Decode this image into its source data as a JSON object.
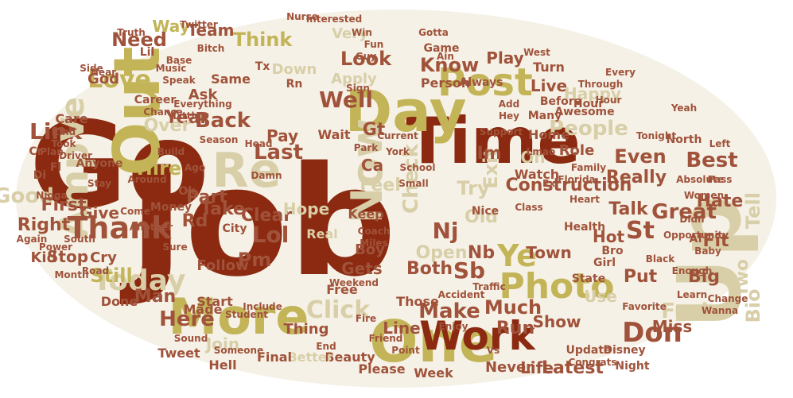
{
  "palette": {
    "rust": "#8b2a10",
    "olive": "#c2b457",
    "tan": "#d8cfa8",
    "brown": "#a0523a",
    "beige": "#ece6d2",
    "ellipse_fill": "#f5f1e6"
  },
  "words": [
    {
      "text": "Job",
      "color": "rust"
    },
    {
      "text": "Go",
      "color": "rust"
    },
    {
      "text": "Time",
      "color": "rust"
    },
    {
      "text": "Day",
      "color": "olive"
    },
    {
      "text": "Out",
      "color": "olive"
    },
    {
      "text": "One",
      "color": "olive"
    },
    {
      "text": "More",
      "color": "olive"
    },
    {
      "text": "Up",
      "color": "tan"
    },
    {
      "text": "Work",
      "color": "rust"
    },
    {
      "text": "Re",
      "color": "tan"
    },
    {
      "text": "Now",
      "color": "tan"
    },
    {
      "text": "Post",
      "color": "olive"
    },
    {
      "text": "Amp",
      "color": "tan"
    },
    {
      "text": "Thank",
      "color": "brown"
    },
    {
      "text": "Photo",
      "color": "olive"
    },
    {
      "text": "Construction",
      "color": "brown"
    },
    {
      "text": "Link",
      "color": "brown"
    },
    {
      "text": "Love",
      "color": "olive"
    },
    {
      "text": "Need",
      "color": "brown"
    },
    {
      "text": "Think",
      "color": "olive"
    },
    {
      "text": "Look",
      "color": "brown"
    },
    {
      "text": "Know",
      "color": "brown"
    },
    {
      "text": "Ve",
      "color": "tan"
    },
    {
      "text": "Year",
      "color": "brown"
    },
    {
      "text": "Back",
      "color": "brown"
    },
    {
      "text": "Well",
      "color": "brown"
    },
    {
      "text": "Check",
      "color": "tan"
    },
    {
      "text": "Great",
      "color": "brown"
    },
    {
      "text": "St",
      "color": "brown"
    },
    {
      "text": "Today",
      "color": "tan"
    },
    {
      "text": "Here",
      "color": "brown"
    },
    {
      "text": "Make",
      "color": "brown"
    },
    {
      "text": "Don",
      "color": "brown"
    },
    {
      "text": "Fuck",
      "color": "tan"
    },
    {
      "text": "Click",
      "color": "tan"
    },
    {
      "text": "Good",
      "color": "tan"
    },
    {
      "text": "Right",
      "color": "brown"
    },
    {
      "text": "Lol",
      "color": "brown"
    },
    {
      "text": "Clear",
      "color": "brown"
    },
    {
      "text": "Pm",
      "color": "brown"
    },
    {
      "text": "Much",
      "color": "brown"
    },
    {
      "text": "People",
      "color": "tan"
    },
    {
      "text": "Even",
      "color": "brown"
    },
    {
      "text": "Best",
      "color": "brown"
    },
    {
      "text": "Really",
      "color": "brown"
    },
    {
      "text": "Still",
      "color": "olive"
    },
    {
      "text": "Man",
      "color": "brown"
    },
    {
      "text": "Hire",
      "color": "olive"
    },
    {
      "text": "Take",
      "color": "brown"
    },
    {
      "text": "Sb",
      "color": "brown"
    },
    {
      "text": "Nj",
      "color": "brown"
    },
    {
      "text": "Ye",
      "color": "olive"
    },
    {
      "text": "Open",
      "color": "tan"
    },
    {
      "text": "Feel",
      "color": "tan"
    },
    {
      "text": "Exit",
      "color": "tan"
    },
    {
      "text": "Live",
      "color": "brown"
    },
    {
      "text": "Team",
      "color": "brown"
    },
    {
      "text": "Way",
      "color": "olive"
    },
    {
      "text": "Talk",
      "color": "brown"
    },
    {
      "text": "Bio",
      "color": "tan"
    },
    {
      "text": "Join",
      "color": "tan"
    },
    {
      "text": "Show",
      "color": "brown"
    },
    {
      "text": "Run",
      "color": "brown"
    },
    {
      "text": "Miss",
      "color": "brown"
    },
    {
      "text": "Stop",
      "color": "brown"
    },
    {
      "text": "Put",
      "color": "brown"
    },
    {
      "text": "Big",
      "color": "brown"
    },
    {
      "text": "Two",
      "color": "tan"
    },
    {
      "text": "Fit",
      "color": "brown"
    },
    {
      "text": "Hate",
      "color": "brown"
    },
    {
      "text": "Tell",
      "color": "tan"
    },
    {
      "text": "Play",
      "color": "brown"
    },
    {
      "text": "Last",
      "color": "brown"
    },
    {
      "text": "Part",
      "color": "brown"
    },
    {
      "text": "Pay",
      "color": "brown"
    },
    {
      "text": "Hot",
      "color": "brown"
    },
    {
      "text": "Kid",
      "color": "brown"
    },
    {
      "text": "Cry",
      "color": "brown"
    },
    {
      "text": "Give",
      "color": "brown"
    },
    {
      "text": "First",
      "color": "brown"
    },
    {
      "text": "Both",
      "color": "brown"
    },
    {
      "text": "Line",
      "color": "brown"
    },
    {
      "text": "Gets",
      "color": "brown"
    },
    {
      "text": "Over",
      "color": "tan"
    },
    {
      "text": "Happy",
      "color": "tan"
    },
    {
      "text": "Hope",
      "color": "tan"
    },
    {
      "text": "Rd",
      "color": "brown"
    },
    {
      "text": "Old",
      "color": "tan"
    },
    {
      "text": "Try",
      "color": "tan"
    },
    {
      "text": "Im",
      "color": "brown"
    },
    {
      "text": "Ca",
      "color": "brown"
    },
    {
      "text": "Gt",
      "color": "brown"
    },
    {
      "text": "Nb",
      "color": "brown"
    },
    {
      "text": "Oh",
      "color": "tan"
    },
    {
      "text": "Role",
      "color": "brown"
    },
    {
      "text": "Watch",
      "color": "brown"
    },
    {
      "text": "Latest",
      "color": "brown"
    },
    {
      "text": "Never",
      "color": "brown"
    },
    {
      "text": "Life",
      "color": "brown"
    },
    {
      "text": "Please",
      "color": "brown"
    },
    {
      "text": "Week",
      "color": "brown"
    },
    {
      "text": "Beauty",
      "color": "brown"
    },
    {
      "text": "Better",
      "color": "tan"
    },
    {
      "text": "Final",
      "color": "brown"
    },
    {
      "text": "Hell",
      "color": "brown"
    },
    {
      "text": "Tweet",
      "color": "brown"
    },
    {
      "text": "Done",
      "color": "brown"
    },
    {
      "text": "Made",
      "color": "brown"
    },
    {
      "text": "Start",
      "color": "brown"
    },
    {
      "text": "Thing",
      "color": "brown"
    },
    {
      "text": "Follow",
      "color": "brown"
    },
    {
      "text": "Those",
      "color": "brown"
    },
    {
      "text": "Town",
      "color": "brown"
    },
    {
      "text": "Use",
      "color": "tan"
    },
    {
      "text": "Boy",
      "color": "brown"
    },
    {
      "text": "Night",
      "color": "brown"
    },
    {
      "text": "Real",
      "color": "tan"
    },
    {
      "text": "Free",
      "color": "brown"
    },
    {
      "text": "Home",
      "color": "brown"
    },
    {
      "text": "Keep",
      "color": "brown"
    },
    {
      "text": "Ask",
      "color": "brown"
    },
    {
      "text": "Same",
      "color": "brown"
    },
    {
      "text": "God",
      "color": "brown"
    },
    {
      "text": "Care",
      "color": "brown"
    },
    {
      "text": "Career",
      "color": "brown"
    },
    {
      "text": "Apply",
      "color": "tan"
    },
    {
      "text": "Down",
      "color": "tan"
    },
    {
      "text": "Very",
      "color": "tan"
    },
    {
      "text": "Wait",
      "color": "brown"
    },
    {
      "text": "Person",
      "color": "brown"
    },
    {
      "text": "Turn",
      "color": "brown"
    },
    {
      "text": "Always",
      "color": "brown"
    },
    {
      "text": "Awesome",
      "color": "brown"
    },
    {
      "text": "Anyone",
      "color": "brown"
    },
    {
      "text": "Nice",
      "color": "brown"
    },
    {
      "text": "Ok",
      "color": "brown"
    },
    {
      "text": "Money",
      "color": "brown"
    },
    {
      "text": "City",
      "color": "brown"
    },
    {
      "text": "Health",
      "color": "brown"
    },
    {
      "text": "State",
      "color": "brown"
    },
    {
      "text": "Update",
      "color": "brown"
    },
    {
      "text": "Disney",
      "color": "brown"
    },
    {
      "text": "Bro",
      "color": "brown"
    },
    {
      "text": "Girl",
      "color": "brown"
    },
    {
      "text": "Many",
      "color": "brown"
    },
    {
      "text": "Tx",
      "color": "brown"
    },
    {
      "text": "Lil",
      "color": "brown"
    },
    {
      "text": "Rn",
      "color": "brown"
    },
    {
      "text": "Fl",
      "color": "brown"
    },
    {
      "text": "Di",
      "color": "brown"
    },
    {
      "text": "Cr",
      "color": "brown"
    },
    {
      "text": "Truth",
      "color": "brown"
    },
    {
      "text": "Twitter",
      "color": "brown"
    },
    {
      "text": "Bitch",
      "color": "brown"
    },
    {
      "text": "Nurse",
      "color": "brown"
    },
    {
      "text": "Interested",
      "color": "brown"
    },
    {
      "text": "Game",
      "color": "brown"
    },
    {
      "text": "Fun",
      "color": "brown"
    },
    {
      "text": "Guy",
      "color": "brown"
    },
    {
      "text": "Gotta",
      "color": "brown"
    },
    {
      "text": "Win",
      "color": "brown"
    },
    {
      "text": "West",
      "color": "brown"
    },
    {
      "text": "Music",
      "color": "brown"
    },
    {
      "text": "Speak",
      "color": "brown"
    },
    {
      "text": "Base",
      "color": "brown"
    },
    {
      "text": "Side",
      "color": "brown"
    },
    {
      "text": "Near",
      "color": "brown"
    },
    {
      "text": "Lmao",
      "color": "brown"
    },
    {
      "text": "York",
      "color": "brown"
    },
    {
      "text": "Before",
      "color": "brown"
    },
    {
      "text": "Hour",
      "color": "brown"
    },
    {
      "text": "North",
      "color": "brown"
    },
    {
      "text": "Left",
      "color": "brown"
    },
    {
      "text": "Pass",
      "color": "brown"
    },
    {
      "text": "Tonight",
      "color": "brown"
    },
    {
      "text": "Absolute",
      "color": "brown"
    },
    {
      "text": "Small",
      "color": "brown"
    },
    {
      "text": "Chance",
      "color": "brown"
    },
    {
      "text": "Everything",
      "color": "brown"
    },
    {
      "text": "Little",
      "color": "brown"
    },
    {
      "text": "Kind",
      "color": "brown"
    },
    {
      "text": "Took",
      "color": "brown"
    },
    {
      "text": "Plan",
      "color": "brown"
    },
    {
      "text": "Driver",
      "color": "brown"
    },
    {
      "text": "Hey",
      "color": "brown"
    },
    {
      "text": "Add",
      "color": "brown"
    },
    {
      "text": "Park",
      "color": "brown"
    },
    {
      "text": "Current",
      "color": "brown"
    },
    {
      "text": "Head",
      "color": "brown"
    },
    {
      "text": "Season",
      "color": "brown"
    },
    {
      "text": "Build",
      "color": "brown"
    },
    {
      "text": "Ago",
      "color": "brown"
    },
    {
      "text": "Around",
      "color": "brown"
    },
    {
      "text": "Stay",
      "color": "brown"
    },
    {
      "text": "Nigga",
      "color": "brown"
    },
    {
      "text": "Again",
      "color": "brown"
    },
    {
      "text": "Road",
      "color": "brown"
    },
    {
      "text": "Month",
      "color": "brown"
    },
    {
      "text": "Power",
      "color": "brown"
    },
    {
      "text": "South",
      "color": "brown"
    },
    {
      "text": "Another",
      "color": "brown"
    },
    {
      "text": "Come",
      "color": "brown"
    },
    {
      "text": "Sure",
      "color": "brown"
    },
    {
      "text": "Sound",
      "color": "brown"
    },
    {
      "text": "Someone",
      "color": "brown"
    },
    {
      "text": "Student",
      "color": "brown"
    },
    {
      "text": "Include",
      "color": "brown"
    },
    {
      "text": "End",
      "color": "brown"
    },
    {
      "text": "Friend",
      "color": "brown"
    },
    {
      "text": "Enjoy",
      "color": "brown"
    },
    {
      "text": "Point",
      "color": "brown"
    },
    {
      "text": "Fire",
      "color": "brown"
    },
    {
      "text": "Coach",
      "color": "brown"
    },
    {
      "text": "Traffic",
      "color": "brown"
    },
    {
      "text": "Miles",
      "color": "brown"
    },
    {
      "text": "Weekend",
      "color": "brown"
    },
    {
      "text": "Accident",
      "color": "brown"
    },
    {
      "text": "Class",
      "color": "brown"
    },
    {
      "text": "Black",
      "color": "brown"
    },
    {
      "text": "Learn",
      "color": "brown"
    },
    {
      "text": "Favorite",
      "color": "brown"
    },
    {
      "text": "Wanna",
      "color": "brown"
    },
    {
      "text": "Change",
      "color": "brown"
    },
    {
      "text": "Baby",
      "color": "brown"
    },
    {
      "text": "Enough",
      "color": "brown"
    },
    {
      "text": "Didn",
      "color": "brown"
    },
    {
      "text": "Opportunity",
      "color": "brown"
    },
    {
      "text": "Women",
      "color": "brown"
    },
    {
      "text": "Heart",
      "color": "brown"
    },
    {
      "text": "Family",
      "color": "brown"
    },
    {
      "text": "Support",
      "color": "brown"
    },
    {
      "text": "School",
      "color": "brown"
    },
    {
      "text": "Ex",
      "color": "brown"
    },
    {
      "text": "Florida",
      "color": "brown"
    },
    {
      "text": "Af",
      "color": "brown"
    },
    {
      "text": "Yeah",
      "color": "brown"
    },
    {
      "text": "Through",
      "color": "brown"
    },
    {
      "text": "Every",
      "color": "brown"
    },
    {
      "text": "Congrats",
      "color": "brown"
    },
    {
      "text": "Sign",
      "color": "brown"
    },
    {
      "text": "Damn",
      "color": "brown"
    },
    {
      "text": "Ain",
      "color": "brown"
    },
    {
      "text": "Vs",
      "color": "brown"
    },
    {
      "text": "Hour",
      "color": "brown"
    }
  ]
}
